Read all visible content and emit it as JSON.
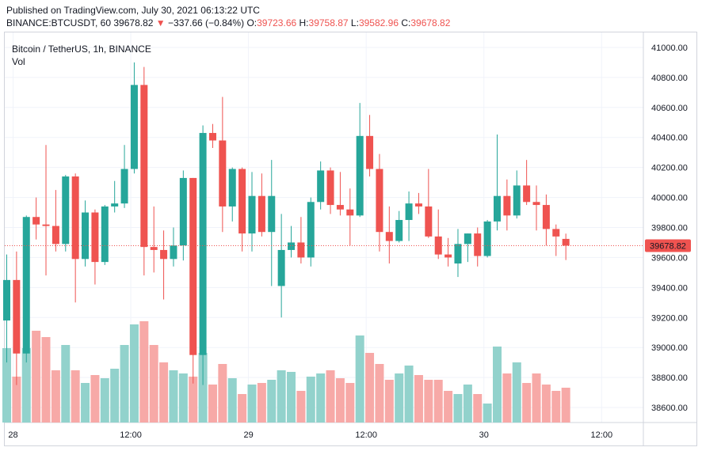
{
  "header": {
    "published": "Published on TradingView.com, July 30, 2021 06:13:22 UTC",
    "symbol": "BINANCE:BTCUSDT, 60",
    "last": "39678.82",
    "change": "−337.66 (−0.84%)",
    "o_label": "O:",
    "o_value": "39723.66",
    "h_label": "H:",
    "h_value": "39758.87",
    "l_label": "L:",
    "l_value": "39582.96",
    "c_label": "C:",
    "c_value": "39678.82"
  },
  "legend": {
    "title": "Bitcoin / TetherUS, 1h, BINANCE",
    "vol": "Vol"
  },
  "colors": {
    "up": "#26a69a",
    "down": "#ef5350",
    "vol_up": "#92d2cc",
    "vol_down": "#f7a9a7",
    "grid": "#f0f3fa",
    "price_label_bg": "#ef5350"
  },
  "chart_data": {
    "type": "candlestick",
    "price_axis": {
      "min": 38500,
      "max": 41100,
      "ticks": [
        "41000.00",
        "40800.00",
        "40600.00",
        "40400.00",
        "40200.00",
        "40000.00",
        "39800.00",
        "39600.00",
        "39400.00",
        "39200.00",
        "39000.00",
        "38800.00",
        "38600.00"
      ]
    },
    "last_price": "39678.82",
    "time_axis": {
      "labels": [
        {
          "text": "28",
          "index": 0
        },
        {
          "text": "12:00",
          "index": 12
        },
        {
          "text": "29",
          "index": 24
        },
        {
          "text": "12:00",
          "index": 36
        },
        {
          "text": "30",
          "index": 48
        },
        {
          "text": "12:00",
          "index": 60
        }
      ]
    },
    "candles": [
      {
        "o": 39180,
        "h": 39620,
        "l": 38900,
        "c": 39450
      },
      {
        "o": 39450,
        "h": 39640,
        "l": 38750,
        "c": 38960
      },
      {
        "o": 38960,
        "h": 39880,
        "l": 38900,
        "c": 39870
      },
      {
        "o": 39870,
        "h": 40000,
        "l": 39720,
        "c": 39820
      },
      {
        "o": 39820,
        "h": 40350,
        "l": 39480,
        "c": 39810
      },
      {
        "o": 39810,
        "h": 40050,
        "l": 39640,
        "c": 39690
      },
      {
        "o": 39690,
        "h": 40150,
        "l": 39640,
        "c": 40140
      },
      {
        "o": 40140,
        "h": 40160,
        "l": 39300,
        "c": 39590
      },
      {
        "o": 39590,
        "h": 39980,
        "l": 39540,
        "c": 39900
      },
      {
        "o": 39900,
        "h": 39920,
        "l": 39420,
        "c": 39570
      },
      {
        "o": 39570,
        "h": 39950,
        "l": 39550,
        "c": 39940
      },
      {
        "o": 39940,
        "h": 40110,
        "l": 39900,
        "c": 39960
      },
      {
        "o": 39960,
        "h": 40350,
        "l": 39930,
        "c": 40190
      },
      {
        "o": 40190,
        "h": 40900,
        "l": 40160,
        "c": 40750
      },
      {
        "o": 40750,
        "h": 40870,
        "l": 39480,
        "c": 39670
      },
      {
        "o": 39670,
        "h": 39940,
        "l": 39500,
        "c": 39650
      },
      {
        "o": 39650,
        "h": 39780,
        "l": 39320,
        "c": 39590
      },
      {
        "o": 39590,
        "h": 39800,
        "l": 39540,
        "c": 39680
      },
      {
        "o": 39680,
        "h": 40180,
        "l": 39580,
        "c": 40130
      },
      {
        "o": 40130,
        "h": 40130,
        "l": 38760,
        "c": 38950
      },
      {
        "o": 38950,
        "h": 40480,
        "l": 38750,
        "c": 40430
      },
      {
        "o": 40430,
        "h": 40490,
        "l": 40330,
        "c": 40380
      },
      {
        "o": 40380,
        "h": 40670,
        "l": 39770,
        "c": 39940
      },
      {
        "o": 39940,
        "h": 40200,
        "l": 39840,
        "c": 40190
      },
      {
        "o": 40190,
        "h": 40200,
        "l": 39640,
        "c": 39760
      },
      {
        "o": 39760,
        "h": 40170,
        "l": 39640,
        "c": 40010
      },
      {
        "o": 40010,
        "h": 40160,
        "l": 39740,
        "c": 39770
      },
      {
        "o": 39770,
        "h": 40250,
        "l": 39410,
        "c": 40010
      },
      {
        "o": 39410,
        "h": 39890,
        "l": 39200,
        "c": 39650
      },
      {
        "o": 39650,
        "h": 39810,
        "l": 39600,
        "c": 39700
      },
      {
        "o": 39700,
        "h": 39870,
        "l": 39560,
        "c": 39600
      },
      {
        "o": 39600,
        "h": 40000,
        "l": 39540,
        "c": 39970
      },
      {
        "o": 39970,
        "h": 40240,
        "l": 39920,
        "c": 40180
      },
      {
        "o": 40180,
        "h": 40200,
        "l": 39890,
        "c": 39950
      },
      {
        "o": 39950,
        "h": 40170,
        "l": 39880,
        "c": 39920
      },
      {
        "o": 39920,
        "h": 40060,
        "l": 39680,
        "c": 39880
      },
      {
        "o": 39880,
        "h": 40630,
        "l": 39870,
        "c": 40410
      },
      {
        "o": 40410,
        "h": 40550,
        "l": 40140,
        "c": 40190
      },
      {
        "o": 40190,
        "h": 40290,
        "l": 39640,
        "c": 39770
      },
      {
        "o": 39770,
        "h": 39940,
        "l": 39560,
        "c": 39710
      },
      {
        "o": 39710,
        "h": 39910,
        "l": 39700,
        "c": 39850
      },
      {
        "o": 39850,
        "h": 40040,
        "l": 39710,
        "c": 39960
      },
      {
        "o": 39960,
        "h": 40030,
        "l": 39890,
        "c": 39940
      },
      {
        "o": 39940,
        "h": 40190,
        "l": 39730,
        "c": 39740
      },
      {
        "o": 39740,
        "h": 39920,
        "l": 39590,
        "c": 39620
      },
      {
        "o": 39620,
        "h": 39730,
        "l": 39540,
        "c": 39600
      },
      {
        "o": 39560,
        "h": 39790,
        "l": 39470,
        "c": 39690
      },
      {
        "o": 39690,
        "h": 39760,
        "l": 39570,
        "c": 39760
      },
      {
        "o": 39760,
        "h": 39800,
        "l": 39540,
        "c": 39610
      },
      {
        "o": 39610,
        "h": 39850,
        "l": 39600,
        "c": 39840
      },
      {
        "o": 39840,
        "h": 40420,
        "l": 39780,
        "c": 40010
      },
      {
        "o": 40010,
        "h": 40120,
        "l": 39780,
        "c": 39880
      },
      {
        "o": 39880,
        "h": 40180,
        "l": 39860,
        "c": 40080
      },
      {
        "o": 40080,
        "h": 40250,
        "l": 39950,
        "c": 39970
      },
      {
        "o": 39970,
        "h": 40080,
        "l": 39780,
        "c": 39950
      },
      {
        "o": 39950,
        "h": 40020,
        "l": 39680,
        "c": 39790
      },
      {
        "o": 39790,
        "h": 39820,
        "l": 39610,
        "c": 39740
      },
      {
        "o": 39724,
        "h": 39759,
        "l": 39583,
        "c": 39679
      }
    ],
    "volume": {
      "max": 1000,
      "values": [
        470,
        290,
        470,
        580,
        540,
        330,
        490,
        330,
        250,
        300,
        280,
        340,
        490,
        620,
        640,
        490,
        380,
        330,
        310,
        290,
        440,
        240,
        370,
        280,
        180,
        240,
        250,
        270,
        330,
        320,
        200,
        290,
        310,
        330,
        280,
        250,
        550,
        440,
        370,
        270,
        310,
        360,
        300,
        270,
        270,
        200,
        180,
        240,
        180,
        120,
        480,
        310,
        380,
        250,
        310,
        240,
        200,
        220
      ]
    }
  }
}
